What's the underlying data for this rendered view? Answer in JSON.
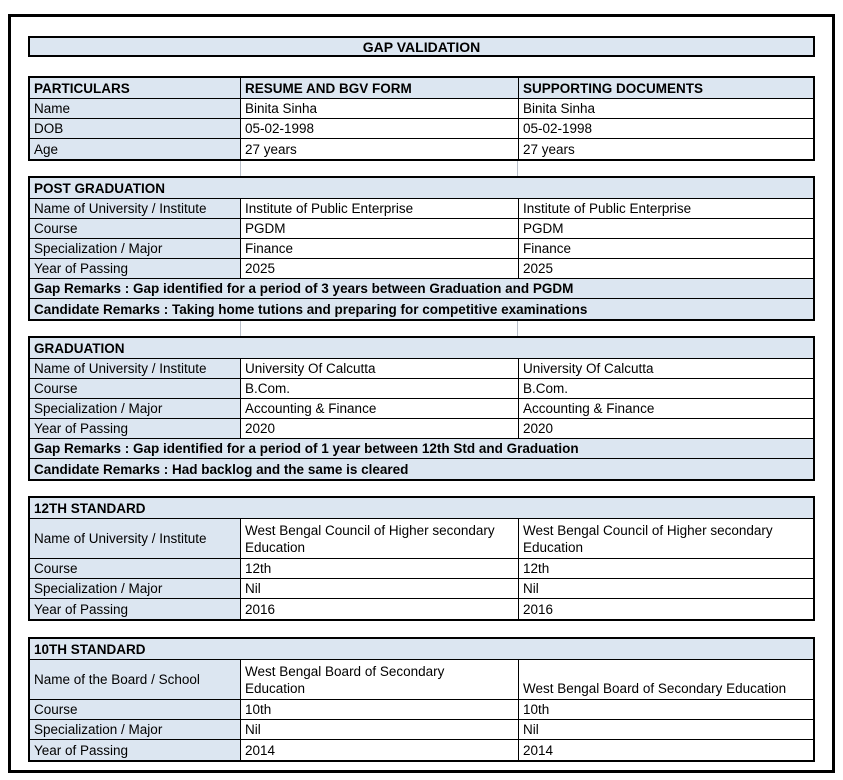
{
  "title": "GAP VALIDATION",
  "colors": {
    "fill": "#dce6f1",
    "border": "#000000",
    "gridline": "#b8bfc9"
  },
  "particulars": {
    "headers": [
      "PARTICULARS",
      "RESUME AND BGV FORM",
      "SUPPORTING DOCUMENTS"
    ],
    "rows": [
      {
        "label": "Name",
        "resume": "Binita Sinha",
        "supporting": "Binita Sinha"
      },
      {
        "label": "DOB",
        "resume": "05-02-1998",
        "supporting": "05-02-1998"
      },
      {
        "label": "Age",
        "resume": "27 years",
        "supporting": "27 years"
      }
    ]
  },
  "sections": [
    {
      "title": "POST GRADUATION",
      "rows": [
        {
          "label": "Name of University / Institute",
          "resume": "Institute of Public Enterprise",
          "supporting": "Institute of Public Enterprise"
        },
        {
          "label": "Course",
          "resume": "PGDM",
          "supporting": "PGDM"
        },
        {
          "label": "Specialization / Major",
          "resume": "Finance",
          "supporting": "Finance"
        },
        {
          "label": "Year of Passing",
          "resume": "2025",
          "supporting": "2025"
        }
      ],
      "gap_remarks": "Gap Remarks : Gap identified for a period of 3 years between Graduation and PGDM",
      "candidate_remarks": "Candidate Remarks : Taking home tutions and preparing for competitive examinations"
    },
    {
      "title": "GRADUATION",
      "rows": [
        {
          "label": "Name of University / Institute",
          "resume": "University Of Calcutta",
          "supporting": "University Of Calcutta"
        },
        {
          "label": "Course",
          "resume": "B.Com.",
          "supporting": "B.Com."
        },
        {
          "label": "Specialization / Major",
          "resume": "Accounting & Finance",
          "supporting": "Accounting & Finance"
        },
        {
          "label": "Year of Passing",
          "resume": "2020",
          "supporting": "2020"
        }
      ],
      "gap_remarks": "Gap Remarks : Gap identified for a period of 1 year between 12th Std and Graduation",
      "candidate_remarks": "Candidate Remarks : Had backlog and the same is cleared"
    },
    {
      "title": "12TH STANDARD",
      "rows": [
        {
          "label": "Name of University / Institute",
          "resume": "West Bengal Council of Higher secondary Education",
          "supporting": "West Bengal Council of Higher secondary Education"
        },
        {
          "label": "Course",
          "resume": "12th",
          "supporting": "12th"
        },
        {
          "label": "Specialization / Major",
          "resume": "Nil",
          "supporting": "Nil"
        },
        {
          "label": "Year of Passing",
          "resume": "2016",
          "supporting": "2016"
        }
      ]
    },
    {
      "title": "10TH STANDARD",
      "rows": [
        {
          "label": "Name of the Board / School",
          "resume": "West Bengal Board of Secondary Education",
          "supporting": "West Bengal Board of Secondary Education"
        },
        {
          "label": "Course",
          "resume": "10th",
          "supporting": "10th"
        },
        {
          "label": "Specialization / Major",
          "resume": "Nil",
          "supporting": "Nil"
        },
        {
          "label": "Year of Passing",
          "resume": "2014",
          "supporting": "2014"
        }
      ]
    }
  ]
}
